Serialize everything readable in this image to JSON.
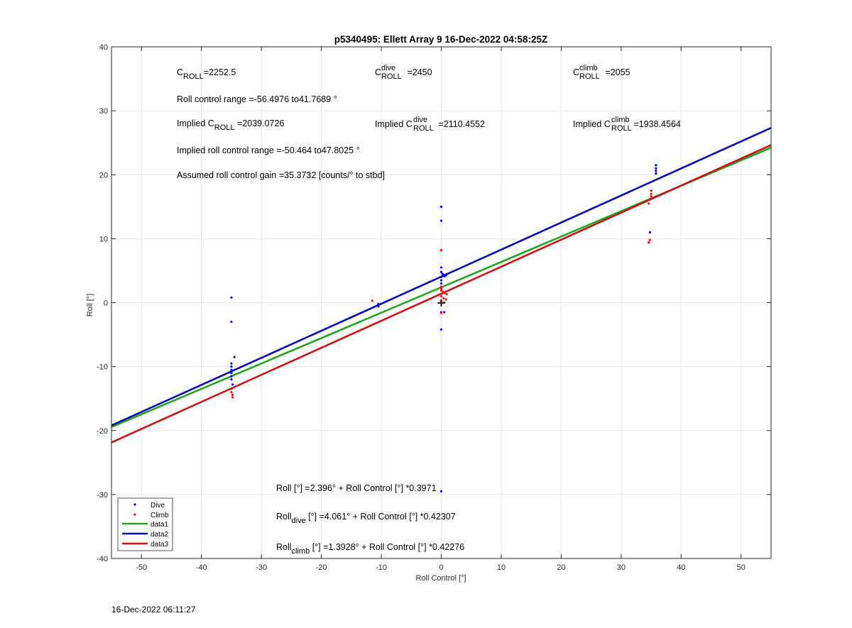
{
  "chart_data": {
    "type": "scatter",
    "title": "p5340495: Ellett Array 9 16-Dec-2022 04:58:25Z",
    "xlabel": "Roll Control [°]",
    "ylabel": "Roll [°]",
    "xlim": [
      -55,
      55
    ],
    "ylim": [
      -40,
      40
    ],
    "xticks": [
      -50,
      -40,
      -30,
      -20,
      -10,
      0,
      10,
      20,
      30,
      40,
      50
    ],
    "yticks": [
      -40,
      -30,
      -20,
      -10,
      0,
      10,
      20,
      30,
      40
    ],
    "grid": true,
    "legend_position": "bottom-left",
    "legend": [
      "Dive",
      "Climb",
      "data1",
      "data2",
      "data3"
    ],
    "colors": {
      "dive": "#0000ff",
      "climb": "#ff0000",
      "data1": "#1fa51f",
      "data2": "#0a0ab4",
      "data3": "#c81414"
    },
    "series": [
      {
        "name": "Dive",
        "kind": "points",
        "color": "#0000ff",
        "points": [
          [
            -35,
            0.8
          ],
          [
            -35,
            -3.0
          ],
          [
            -34.5,
            -8.5
          ],
          [
            -35,
            -9.5
          ],
          [
            -35,
            -10.0
          ],
          [
            -35,
            -10.5
          ],
          [
            -35,
            -11.0
          ],
          [
            -35,
            -11.5
          ],
          [
            -35,
            -12.0
          ],
          [
            -34.8,
            -12.8
          ],
          [
            -10.5,
            -0.2
          ],
          [
            -10.5,
            -0.6
          ],
          [
            0,
            15.0
          ],
          [
            0,
            12.8
          ],
          [
            0,
            5.5
          ],
          [
            0,
            4.8
          ],
          [
            0.2,
            4.5
          ],
          [
            0.4,
            4.3
          ],
          [
            0.6,
            4.1
          ],
          [
            0.8,
            4.3
          ],
          [
            0,
            4.0
          ],
          [
            0,
            3.5
          ],
          [
            0,
            3.0
          ],
          [
            0,
            -1.5
          ],
          [
            0.5,
            -1.5
          ],
          [
            0,
            -4.2
          ],
          [
            0,
            -29.5
          ],
          [
            35.8,
            21.5
          ],
          [
            35.8,
            21.0
          ],
          [
            35.8,
            20.6
          ],
          [
            35.8,
            20.2
          ],
          [
            34.8,
            11.0
          ]
        ]
      },
      {
        "name": "Climb",
        "kind": "points",
        "color": "#ff0000",
        "points": [
          [
            -35,
            -13.5
          ],
          [
            -35,
            -14.0
          ],
          [
            -34.8,
            -14.4
          ],
          [
            -34.8,
            -14.8
          ],
          [
            -11.5,
            0.3
          ],
          [
            0,
            8.2
          ],
          [
            0,
            2.5
          ],
          [
            0,
            2.2
          ],
          [
            0,
            1.9
          ],
          [
            0.3,
            1.7
          ],
          [
            0.6,
            1.5
          ],
          [
            0.9,
            1.3
          ],
          [
            0,
            1.0
          ],
          [
            0.4,
            0.7
          ],
          [
            0.8,
            0.5
          ],
          [
            0,
            0.2
          ],
          [
            0.5,
            0.0
          ],
          [
            0,
            -1.6
          ],
          [
            35,
            17.5
          ],
          [
            35,
            17.0
          ],
          [
            35,
            16.6
          ],
          [
            34.6,
            15.5
          ],
          [
            34.8,
            9.8
          ],
          [
            34.6,
            9.4
          ]
        ]
      },
      {
        "name": "data1",
        "kind": "line",
        "color": "#1fa51f",
        "intercept": 2.396,
        "slope": 0.3971
      },
      {
        "name": "data2",
        "kind": "line",
        "color": "#0a0ab4",
        "intercept": 4.061,
        "slope": 0.42307
      },
      {
        "name": "data3",
        "kind": "line",
        "color": "#c81414",
        "intercept": 1.3928,
        "slope": 0.42276
      }
    ],
    "marker": {
      "label": "+",
      "x": 0,
      "y": 0
    },
    "annotations": {
      "c_roll": {
        "base": "C",
        "sub": "ROLL",
        "value": "=2252.5"
      },
      "c_roll_dive": {
        "base": "C",
        "sup": "dive",
        "sub": "ROLL",
        "value": " =2450"
      },
      "c_roll_climb": {
        "base": "C",
        "sup": "climb",
        "sub": "ROLL",
        "value": " =2055"
      },
      "roll_range": "Roll control range =-56.4976 to41.7689 °",
      "implied_c_roll": {
        "prefix": "Implied C",
        "sub": "ROLL",
        "value": " =2039.0726"
      },
      "implied_c_roll_dive": {
        "prefix": "Implied C",
        "sup": "dive",
        "sub": "ROLL",
        "value": " =2110.4552"
      },
      "implied_c_roll_climb": {
        "prefix": "Implied C",
        "sup": "climb",
        "sub": "ROLL",
        "value": " =1938.4564"
      },
      "implied_range": "Implied roll control range =-50.464 to47.8025 °",
      "gain": "Assumed roll control gain =35.3732 [counts/° to stbd]",
      "fit_all": "Roll [°] =2.396° + Roll Control [°] *0.3971",
      "fit_dive": {
        "base": "Roll",
        "sub": "dive",
        "rest": " [°] =4.061° + Roll Control [°] *0.42307"
      },
      "fit_climb": {
        "base": "Roll",
        "sub": "climb",
        "rest": " [°] =1.3928° + Roll Control [°] *0.42276"
      }
    }
  },
  "footer": {
    "timestamp": "16-Dec-2022 06:11:27"
  }
}
